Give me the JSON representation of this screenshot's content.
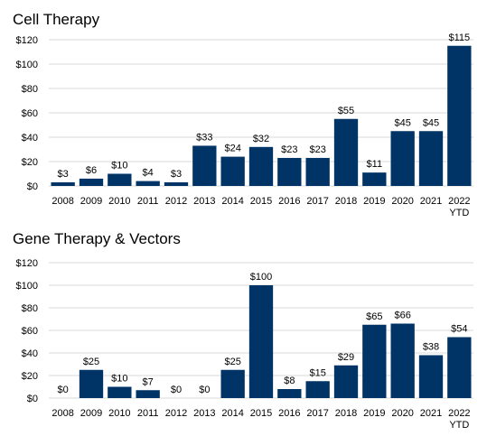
{
  "chart_data": [
    {
      "type": "bar",
      "title": "Cell Therapy",
      "xlabel": "",
      "ylabel": "",
      "categories": [
        [
          "2008"
        ],
        [
          "2009"
        ],
        [
          "2010"
        ],
        [
          "2011"
        ],
        [
          "2012"
        ],
        [
          "2013"
        ],
        [
          "2014"
        ],
        [
          "2015"
        ],
        [
          "2016"
        ],
        [
          "2017"
        ],
        [
          "2018"
        ],
        [
          "2019"
        ],
        [
          "2020"
        ],
        [
          "2021"
        ],
        [
          "2022",
          "YTD"
        ]
      ],
      "values": [
        3,
        6,
        10,
        4,
        3,
        33,
        24,
        32,
        23,
        23,
        55,
        11,
        45,
        45,
        115
      ],
      "data_labels": [
        "$3",
        "$6",
        "$10",
        "$4",
        "$3",
        "$33",
        "$24",
        "$32",
        "$23",
        "$23",
        "$55",
        "$11",
        "$45",
        "$45",
        "$115"
      ],
      "yticks": [
        0,
        20,
        40,
        60,
        80,
        100,
        120
      ],
      "ytick_labels": [
        "$0",
        "$20",
        "$40",
        "$60",
        "$80",
        "$100",
        "$120"
      ],
      "ylim": [
        0,
        120
      ],
      "grid": true,
      "bar_color": "#003366"
    },
    {
      "type": "bar",
      "title": "Gene Therapy & Vectors",
      "xlabel": "",
      "ylabel": "",
      "categories": [
        [
          "2008"
        ],
        [
          "2009"
        ],
        [
          "2010"
        ],
        [
          "2011"
        ],
        [
          "2012"
        ],
        [
          "2013"
        ],
        [
          "2014"
        ],
        [
          "2015"
        ],
        [
          "2016"
        ],
        [
          "2017"
        ],
        [
          "2018"
        ],
        [
          "2019"
        ],
        [
          "2020"
        ],
        [
          "2021"
        ],
        [
          "2022",
          "YTD"
        ]
      ],
      "values": [
        0,
        25,
        10,
        7,
        0,
        0,
        25,
        100,
        8,
        15,
        29,
        65,
        66,
        38,
        54
      ],
      "data_labels": [
        "$0",
        "$25",
        "$10",
        "$7",
        "$0",
        "$0",
        "$25",
        "$100",
        "$8",
        "$15",
        "$29",
        "$65",
        "$66",
        "$38",
        "$54"
      ],
      "yticks": [
        0,
        20,
        40,
        60,
        80,
        100,
        120
      ],
      "ytick_labels": [
        "$0",
        "$20",
        "$40",
        "$60",
        "$80",
        "$100",
        "$120"
      ],
      "ylim": [
        0,
        120
      ],
      "grid": true,
      "bar_color": "#003366"
    }
  ]
}
